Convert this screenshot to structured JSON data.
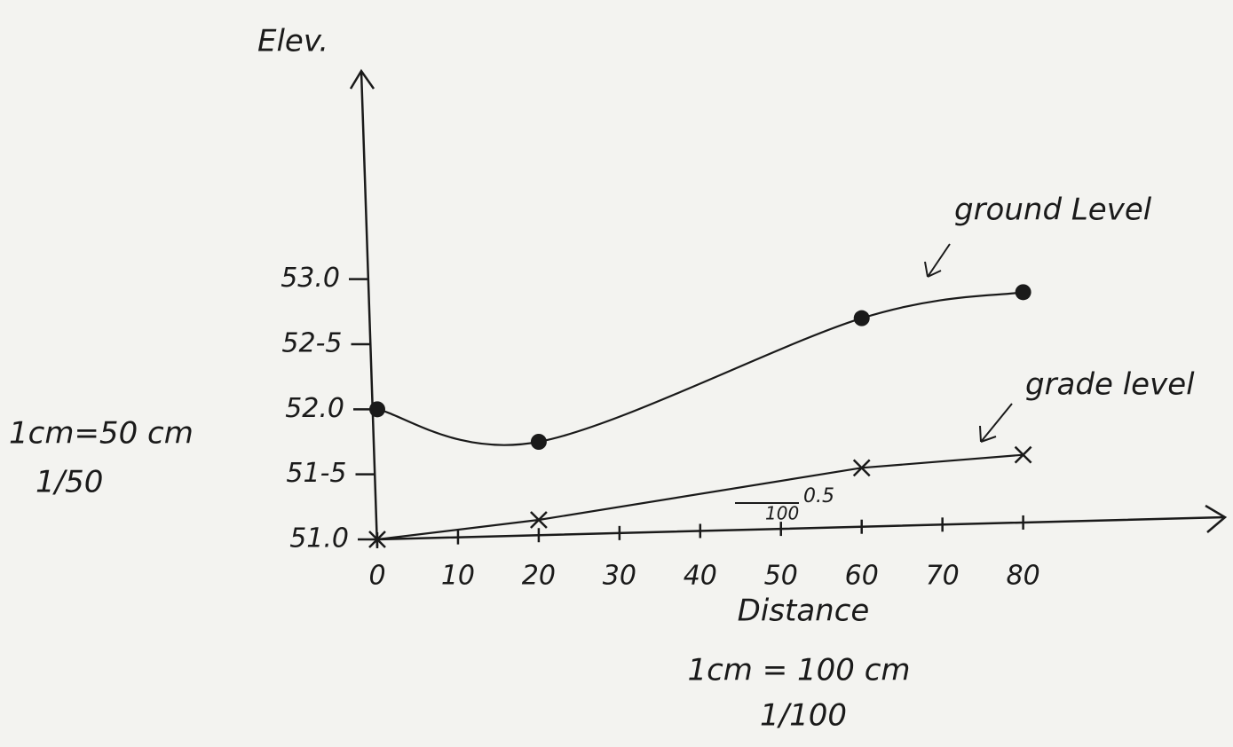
{
  "chart_data": {
    "type": "line",
    "y_label": "Elev.",
    "x_label": "Distance",
    "x_scale_note": "1cm = 100 cm",
    "x_scale_ratio": "1/100",
    "y_scale_note": "1cm=50 cm",
    "y_scale_ratio": "1/50",
    "slope_top": "0.5",
    "slope_bottom": "100",
    "xlim": [
      0,
      105
    ],
    "ylim": [
      51.0,
      54.6
    ],
    "xticks": [
      0,
      10,
      20,
      30,
      40,
      50,
      60,
      70,
      80
    ],
    "yticks": [
      {
        "value": 51.0,
        "label": "51.0"
      },
      {
        "value": 51.5,
        "label": "51-5"
      },
      {
        "value": 52.0,
        "label": "52.0"
      },
      {
        "value": 52.5,
        "label": "52-5"
      },
      {
        "value": 53.0,
        "label": "53.0"
      }
    ],
    "series": [
      {
        "name": "ground Level",
        "color": "#1a1a1a",
        "marker": "dot",
        "smooth": true,
        "x": [
          0,
          20,
          60,
          80
        ],
        "values": [
          52.0,
          51.75,
          52.7,
          52.9
        ]
      },
      {
        "name": "grade level",
        "color": "#1a1a1a",
        "marker": "cross",
        "smooth": false,
        "x": [
          0,
          20,
          60,
          80
        ],
        "values": [
          51.0,
          51.15,
          51.55,
          51.65
        ]
      }
    ]
  }
}
